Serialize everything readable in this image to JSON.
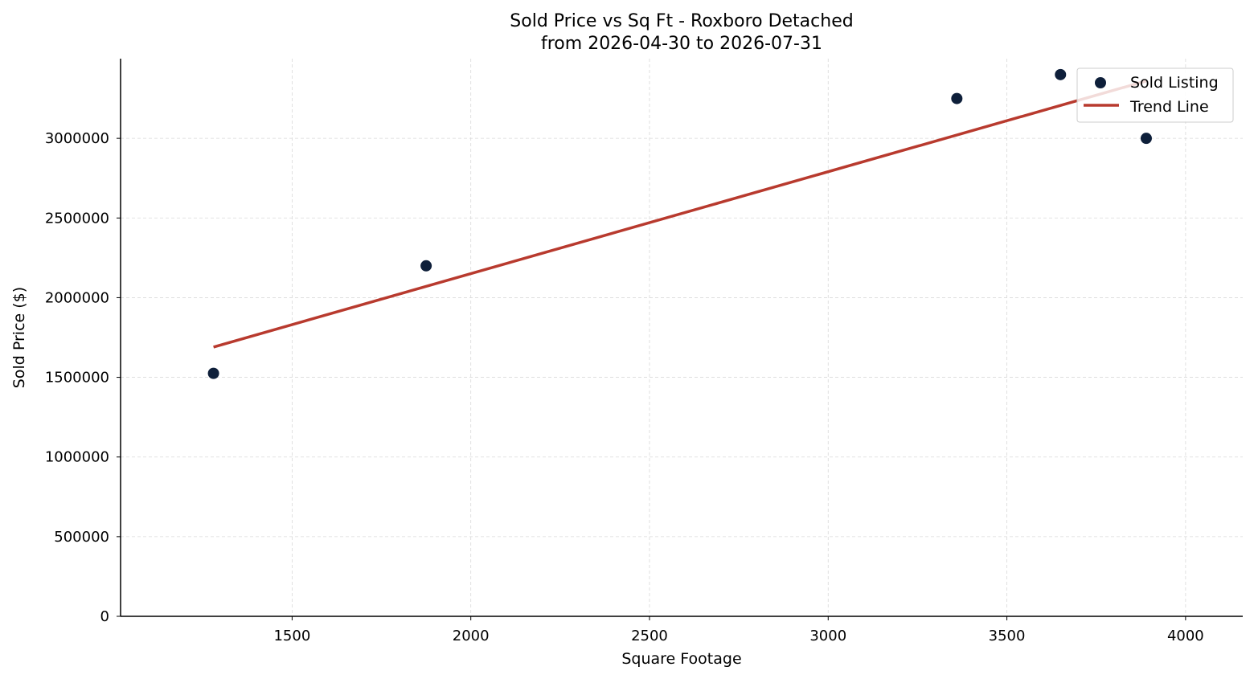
{
  "chart_data": {
    "type": "scatter",
    "title": "Sold Price vs Sq Ft - Roxboro Detached",
    "subtitle": "from 2026-04-30 to 2026-07-31",
    "xlabel": "Square Footage",
    "ylabel": "Sold Price ($)",
    "xlim": [
      1020,
      4160
    ],
    "ylim": [
      0,
      3500000
    ],
    "x_ticks": [
      1500,
      2000,
      2500,
      3000,
      3500,
      4000
    ],
    "y_ticks": [
      0,
      500000,
      1000000,
      1500000,
      2000000,
      2500000,
      3000000
    ],
    "grid": true,
    "legend_position": "top-right",
    "series": [
      {
        "name": "Sold Listing",
        "kind": "scatter",
        "color": "#0e1f3a",
        "points": [
          {
            "x": 1280,
            "y": 1525000
          },
          {
            "x": 1875,
            "y": 2200000
          },
          {
            "x": 3360,
            "y": 3250000
          },
          {
            "x": 3650,
            "y": 3400000
          },
          {
            "x": 3890,
            "y": 3000000
          }
        ]
      },
      {
        "name": "Trend Line",
        "kind": "line",
        "color": "#b83a2e",
        "points": [
          {
            "x": 1280,
            "y": 1690000
          },
          {
            "x": 3890,
            "y": 3360000
          }
        ]
      }
    ]
  }
}
